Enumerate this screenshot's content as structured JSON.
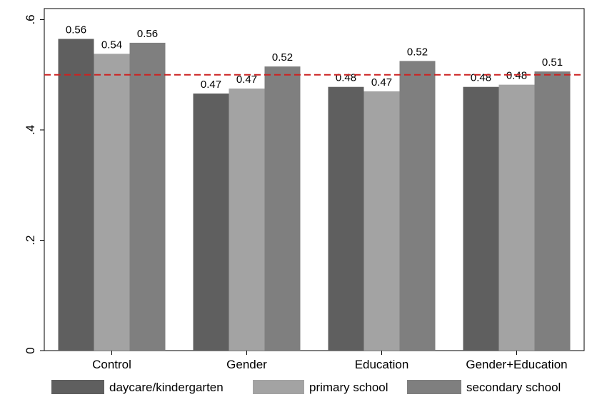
{
  "chart_data": {
    "type": "bar",
    "categories": [
      "Control",
      "Gender",
      "Education",
      "Gender+Education"
    ],
    "series": [
      {
        "name": "daycare/kindergarten",
        "values": [
          0.565,
          0.466,
          0.478,
          0.478
        ],
        "labels": [
          "0.56",
          "0.47",
          "0.48",
          "0.48"
        ],
        "color": "#5f5f5f"
      },
      {
        "name": "primary school",
        "values": [
          0.538,
          0.475,
          0.47,
          0.482
        ],
        "labels": [
          "0.54",
          "0.47",
          "0.47",
          "0.48"
        ],
        "color": "#a3a3a3"
      },
      {
        "name": "secondary school",
        "values": [
          0.558,
          0.515,
          0.525,
          0.506
        ],
        "labels": [
          "0.56",
          "0.52",
          "0.52",
          "0.51"
        ],
        "color": "#7f7f7f"
      }
    ],
    "yticks": [
      0,
      0.2,
      0.4,
      0.6
    ],
    "ytick_labels": [
      "0",
      ".2",
      ".4",
      ".6"
    ],
    "ylim": [
      0,
      0.62
    ],
    "reference_line": {
      "value": 0.5,
      "color": "#cc2222",
      "style": "dashed"
    },
    "grid": false,
    "legend_position": "bottom",
    "title": "",
    "xlabel": "",
    "ylabel": ""
  }
}
